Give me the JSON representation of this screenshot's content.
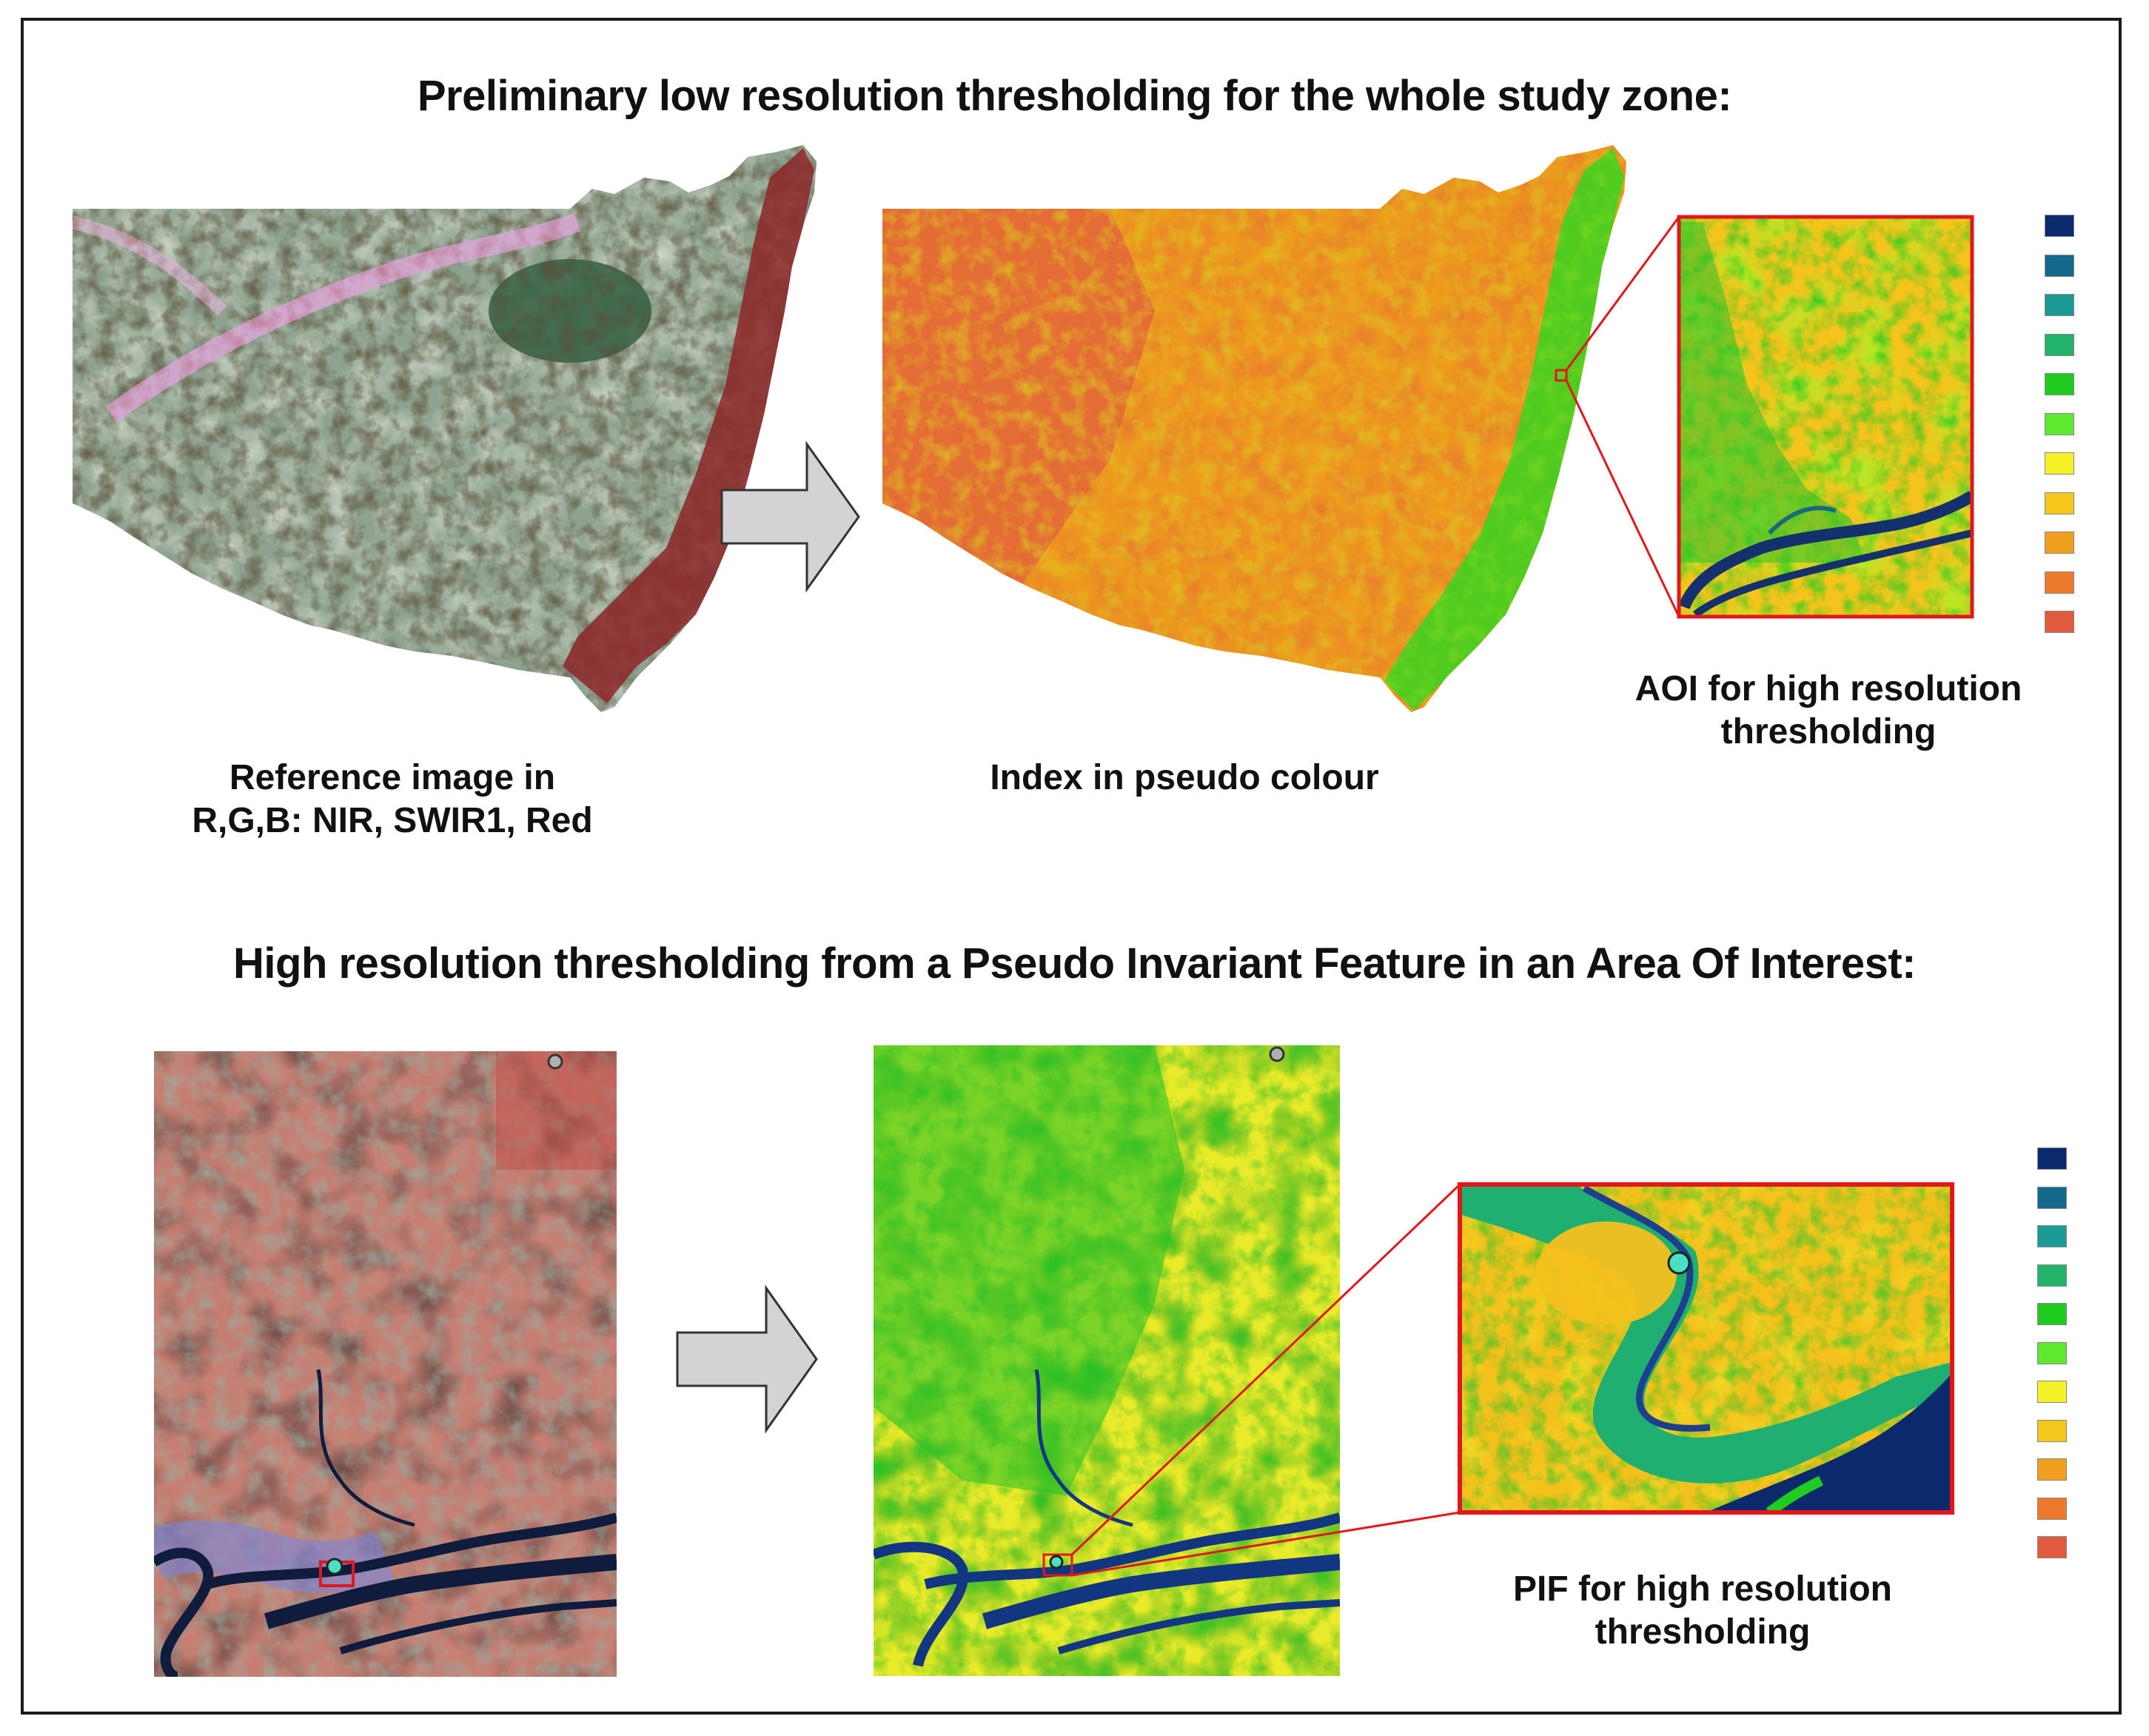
{
  "section1": {
    "title": "Preliminary low resolution thresholding for the whole study zone:",
    "captions": {
      "reference": [
        "Reference image in",
        "R,G,B: NIR, SWIR1, Red"
      ],
      "index": "Index in pseudo colour",
      "aoi": [
        "AOI for high resolution",
        "thresholding"
      ]
    }
  },
  "section2": {
    "title": "High resolution thresholding from a Pseudo Invariant Feature in an Area Of Interest:",
    "captions": {
      "pif": [
        "PIF for high resolution",
        "thresholding"
      ]
    }
  },
  "legend_colors": [
    "#0b2a6e",
    "#156a8c",
    "#1c9a96",
    "#21b36a",
    "#1fcc1f",
    "#5fe830",
    "#f4f226",
    "#f6c71b",
    "#f0a01e",
    "#ec7a2a",
    "#e05a3e"
  ],
  "colors": {
    "highlight": "#e3171b",
    "arrow_fill": "#d3d3d3",
    "arrow_stroke": "#333333"
  },
  "icons": [
    "arrow-right-icon",
    "arrow-right-icon",
    "pif-marker-icon"
  ]
}
